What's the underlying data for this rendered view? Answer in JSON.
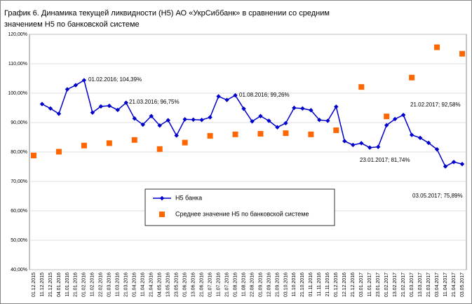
{
  "chart_data": {
    "type": "line",
    "title_lines": [
      "График 6.  Динамика текущей ликвидности (Н5) АО «УкрСиббанк» в сравнении со средним",
      "значением Н5 по банковской системе"
    ],
    "categories": [
      "01.12.2015",
      "11.12.2015",
      "21.12.2015",
      "04.01.2016",
      "11.01.2016",
      "21.01.2016",
      "01.02.2016",
      "11.02.2016",
      "22.02.2016",
      "01.03.2016",
      "11.03.2016",
      "21.03.2016",
      "01.04.2016",
      "11.04.2016",
      "21.04.2016",
      "04.05.2016",
      "13.05.2016",
      "23.05.2016",
      "01.06.2016",
      "13.06.2016",
      "21.06.2016",
      "01.07.2016",
      "11.07.2016",
      "21.07.2016",
      "01.08.2016",
      "11.08.2016",
      "22.08.2016",
      "01.09.2016",
      "12.09.2016",
      "21.09.2016",
      "03.10.2016",
      "11.10.2016",
      "21.10.2016",
      "01.11.2016",
      "11.11.2016",
      "21.11.2016",
      "01.12.2016",
      "12.12.2016",
      "21.12.2016",
      "03.01.2017",
      "11.01.2017",
      "23.01.2017",
      "01.02.2017",
      "13.02.2017",
      "21.02.2017",
      "01.03.2017",
      "13.03.2017",
      "21.03.2017",
      "03.04.2017",
      "11.04.2017",
      "21.04.2017",
      "03.05.2017"
    ],
    "series": [
      {
        "name": "Н5 банка",
        "color": "#0000cc",
        "style": "line",
        "values": [
          null,
          96.3,
          94.8,
          93.0,
          101.3,
          102.7,
          104.39,
          93.4,
          95.5,
          95.7,
          94.3,
          96.75,
          91.4,
          89.3,
          92.2,
          89.0,
          90.8,
          85.6,
          91.1,
          91.0,
          90.9,
          91.8,
          98.9,
          97.7,
          99.26,
          94.7,
          90.4,
          92.2,
          90.6,
          88.4,
          89.8,
          95.0,
          94.8,
          94.2,
          90.9,
          90.6,
          95.4,
          83.7,
          82.4,
          83.0,
          81.5,
          81.74,
          89.1,
          91.2,
          92.58,
          85.8,
          84.8,
          83.1,
          80.9,
          75.1,
          76.6,
          75.89
        ]
      },
      {
        "name": "Среднее значение Н5 по банковской системе",
        "color": "#ff6600",
        "style": "markers",
        "values": [
          78.8,
          null,
          null,
          80.1,
          null,
          null,
          82.2,
          null,
          null,
          83.0,
          null,
          null,
          84.1,
          null,
          null,
          81.0,
          null,
          null,
          83.2,
          null,
          null,
          85.5,
          null,
          null,
          86.0,
          null,
          null,
          86.2,
          null,
          null,
          86.4,
          null,
          null,
          86.0,
          null,
          null,
          87.4,
          null,
          null,
          102.1,
          null,
          null,
          92.1,
          null,
          null,
          105.3,
          null,
          null,
          115.6,
          null,
          null,
          113.4
        ]
      }
    ],
    "annotations": [
      "01.02.2016; 104,39%",
      "21.03.2016; 96,75%",
      "01.08.2016; 99,26%",
      "23.01.2017; 81,74%",
      "21.02.2017; 92,58%",
      "03.05.2017; 75,89%"
    ],
    "ylim": [
      40,
      120
    ],
    "yticks": [
      {
        "value": 40,
        "label": "40,00%"
      },
      {
        "value": 50,
        "label": "50,00%"
      },
      {
        "value": 60,
        "label": "60,00%"
      },
      {
        "value": 70,
        "label": "70,00%"
      },
      {
        "value": 80,
        "label": "80,00%"
      },
      {
        "value": 90,
        "label": "90,00%"
      },
      {
        "value": 100,
        "label": "100,00%"
      },
      {
        "value": 110,
        "label": "110,00%"
      },
      {
        "value": 120,
        "label": "120,00%"
      }
    ],
    "grid": true
  }
}
